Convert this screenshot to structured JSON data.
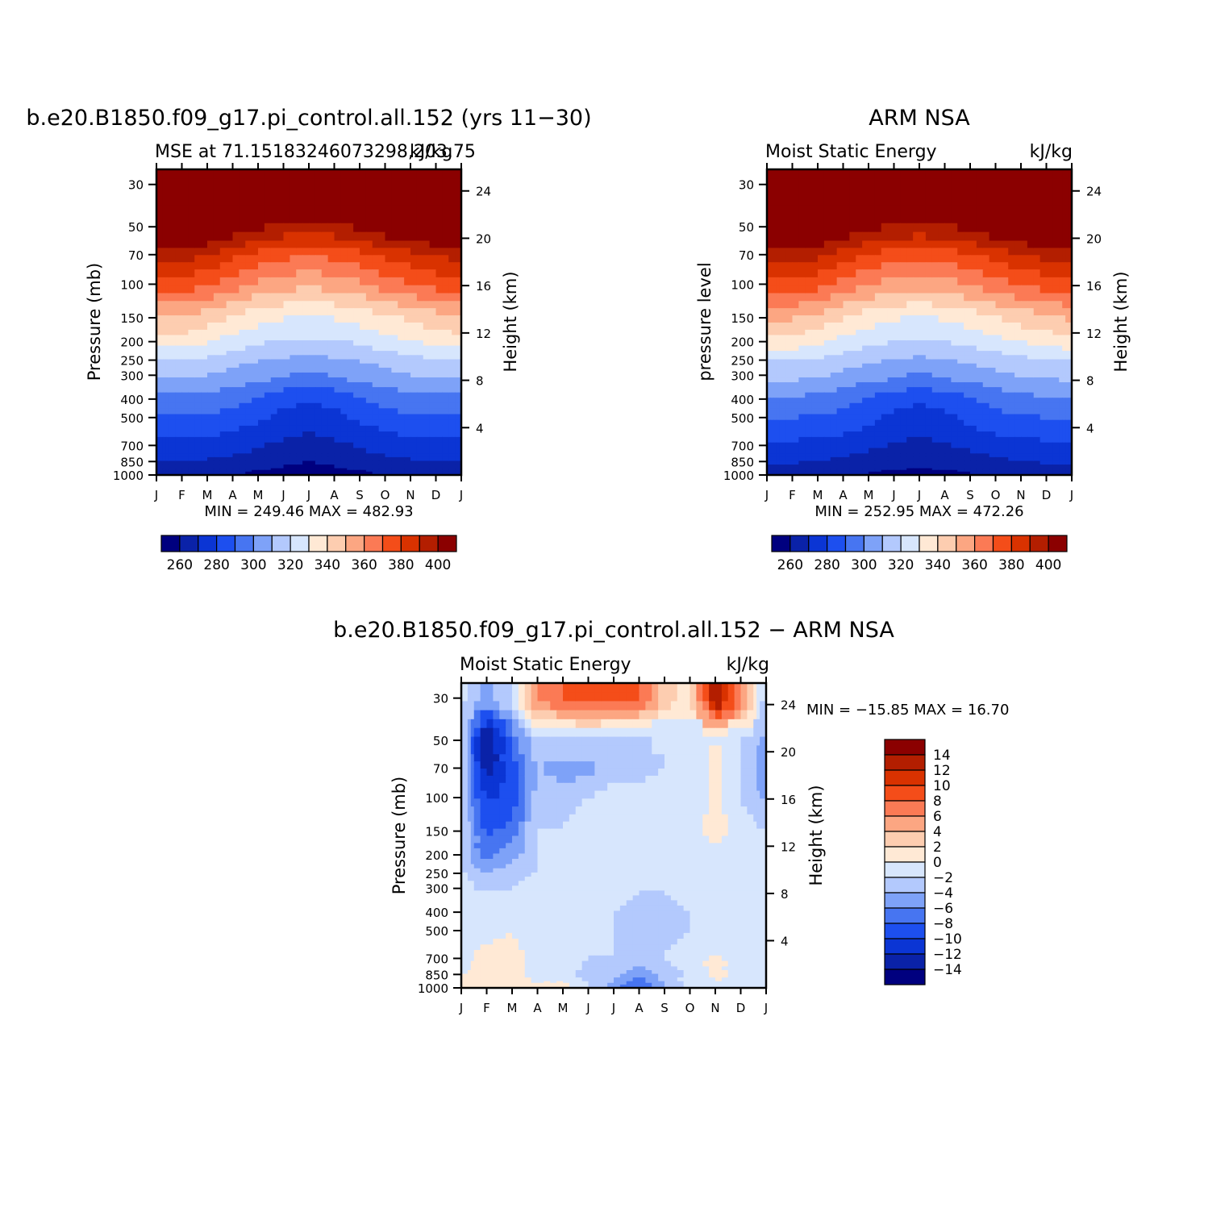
{
  "panels": [
    {
      "title": "b.e20.B1850.f09_g17.pi_control.all.152 (yrs 11−30)",
      "subtitle": "MSE at 71.15183246073298,203.75",
      "units": "kJ/kg",
      "ylabel": "Pressure (mb)",
      "ylabel_right": "Height (km)",
      "minmax": "MIN = 249.46 MAX = 482.93"
    },
    {
      "title": "ARM NSA",
      "subtitle": "Moist Static Energy",
      "units": "kJ/kg",
      "ylabel": "pressure level",
      "ylabel_right": "Height (km)",
      "minmax": "MIN = 252.95 MAX = 472.26"
    },
    {
      "title": "b.e20.B1850.f09_g17.pi_control.all.152 − ARM NSA",
      "subtitle": "Moist Static Energy",
      "units": "kJ/kg",
      "ylabel": "Pressure (mb)",
      "ylabel_right": "Height (km)",
      "minmax": "MIN = −15.85 MAX =   16.70"
    }
  ],
  "chart_data": [
    {
      "type": "heatmap",
      "title": "b.e20.B1850.f09_g17.pi_control.all.152 (yrs 11−30)",
      "subtitle": "MSE at 71.15183246073298,203.75",
      "units": "kJ/kg",
      "xlabel": "",
      "ylabel": "Pressure (mb)",
      "ylabel_right": "Height (km)",
      "x": [
        "J",
        "F",
        "M",
        "A",
        "M",
        "J",
        "J",
        "A",
        "S",
        "O",
        "N",
        "D",
        "J"
      ],
      "y": [
        30,
        50,
        70,
        100,
        150,
        200,
        250,
        300,
        400,
        500,
        700,
        850,
        1000
      ],
      "y_right_ticks": [
        4,
        8,
        12,
        16,
        20,
        24
      ],
      "y_scale": "log",
      "y_reversed": true,
      "values": [
        [
          425,
          425,
          425,
          425,
          425,
          425,
          425,
          425,
          425,
          425,
          425,
          425,
          425
        ],
        [
          418,
          420,
          417,
          410,
          404,
          400,
          398,
          400,
          404,
          410,
          415,
          418,
          418
        ],
        [
          393,
          394,
          390,
          383,
          377,
          373,
          371,
          373,
          377,
          382,
          387,
          391,
          393
        ],
        [
          375,
          375,
          371,
          364,
          358,
          354,
          352,
          354,
          358,
          364,
          369,
          373,
          375
        ],
        [
          350,
          350,
          346,
          339,
          334,
          331,
          329,
          331,
          334,
          339,
          343,
          347,
          350
        ],
        [
          335,
          335,
          332,
          326,
          322,
          320,
          319,
          320,
          322,
          326,
          330,
          333,
          335
        ],
        [
          320,
          320,
          318,
          314,
          311,
          309,
          307,
          309,
          311,
          314,
          317,
          319,
          320
        ],
        [
          311,
          311,
          309,
          306,
          303,
          300,
          296,
          300,
          303,
          306,
          309,
          310,
          311
        ],
        [
          298,
          298,
          297,
          294,
          290,
          284,
          282,
          284,
          290,
          294,
          297,
          298,
          298
        ],
        [
          288,
          288,
          287,
          285,
          281,
          276,
          273,
          276,
          281,
          285,
          287,
          288,
          288
        ],
        [
          278,
          278,
          277,
          275,
          272,
          269,
          267,
          269,
          272,
          275,
          277,
          278,
          278
        ],
        [
          270,
          270,
          269,
          267,
          264,
          261,
          260,
          261,
          264,
          267,
          269,
          270,
          270
        ],
        [
          263,
          263,
          263,
          261,
          259,
          258,
          258,
          258,
          259,
          261,
          263,
          263,
          263
        ]
      ],
      "colorbar": {
        "ticks": [
          260,
          280,
          300,
          320,
          340,
          360,
          380,
          400
        ],
        "levels": [
          250,
          260,
          270,
          280,
          290,
          300,
          310,
          320,
          330,
          340,
          350,
          360,
          370,
          380,
          390,
          400,
          410
        ],
        "colors": [
          "#00007f",
          "#0a22a8",
          "#0b35d4",
          "#1d4fef",
          "#4775f1",
          "#7ea2f8",
          "#b3c9fd",
          "#d7e6fd",
          "#ffe9d5",
          "#fdcdb0",
          "#fca682",
          "#fb7a55",
          "#f44d19",
          "#d93200",
          "#b31e00",
          "#8b0000"
        ]
      },
      "minmax": {
        "min": 249.46,
        "max": 482.93
      }
    },
    {
      "type": "heatmap",
      "title": "ARM NSA",
      "subtitle": "Moist Static Energy",
      "units": "kJ/kg",
      "xlabel": "",
      "ylabel": "pressure level",
      "ylabel_right": "Height (km)",
      "x": [
        "J",
        "F",
        "M",
        "A",
        "M",
        "J",
        "J",
        "A",
        "S",
        "O",
        "N",
        "D",
        "J"
      ],
      "y": [
        30,
        50,
        70,
        100,
        150,
        200,
        250,
        300,
        400,
        500,
        700,
        850,
        1000
      ],
      "y_right_ticks": [
        4,
        8,
        12,
        16,
        20,
        24
      ],
      "y_scale": "log",
      "y_reversed": true,
      "values": [
        [
          425,
          425,
          425,
          425,
          425,
          425,
          425,
          425,
          425,
          425,
          425,
          425,
          425
        ],
        [
          418,
          420,
          418,
          412,
          405,
          401,
          399,
          401,
          405,
          411,
          416,
          418,
          418
        ],
        [
          395,
          396,
          393,
          385,
          379,
          375,
          373,
          375,
          379,
          384,
          389,
          393,
          395
        ],
        [
          376,
          376,
          373,
          366,
          360,
          356,
          354,
          356,
          360,
          366,
          370,
          374,
          376
        ],
        [
          352,
          352,
          348,
          341,
          335,
          332,
          330,
          332,
          335,
          341,
          345,
          349,
          352
        ],
        [
          336,
          336,
          333,
          327,
          323,
          321,
          320,
          321,
          323,
          327,
          331,
          334,
          336
        ],
        [
          321,
          321,
          319,
          315,
          312,
          310,
          308,
          310,
          312,
          315,
          318,
          320,
          321
        ],
        [
          312,
          312,
          310,
          307,
          304,
          301,
          297,
          301,
          304,
          307,
          310,
          311,
          312
        ],
        [
          299,
          299,
          298,
          295,
          290,
          285,
          283,
          285,
          290,
          295,
          298,
          299,
          299
        ],
        [
          289,
          289,
          288,
          286,
          282,
          277,
          274,
          277,
          282,
          286,
          288,
          289,
          289
        ],
        [
          279,
          279,
          278,
          276,
          273,
          270,
          268,
          270,
          273,
          276,
          278,
          279,
          279
        ],
        [
          271,
          271,
          270,
          268,
          265,
          262,
          261,
          262,
          265,
          268,
          270,
          271,
          271
        ],
        [
          264,
          264,
          264,
          262,
          260,
          259,
          259,
          259,
          260,
          262,
          264,
          264,
          264
        ]
      ],
      "colorbar": {
        "ticks": [
          260,
          280,
          300,
          320,
          340,
          360,
          380,
          400
        ],
        "levels": [
          250,
          260,
          270,
          280,
          290,
          300,
          310,
          320,
          330,
          340,
          350,
          360,
          370,
          380,
          390,
          400,
          410
        ],
        "colors": [
          "#00007f",
          "#0a22a8",
          "#0b35d4",
          "#1d4fef",
          "#4775f1",
          "#7ea2f8",
          "#b3c9fd",
          "#d7e6fd",
          "#ffe9d5",
          "#fdcdb0",
          "#fca682",
          "#fb7a55",
          "#f44d19",
          "#d93200",
          "#b31e00",
          "#8b0000"
        ]
      },
      "minmax": {
        "min": 252.95,
        "max": 472.26
      }
    },
    {
      "type": "heatmap",
      "title": "b.e20.B1850.f09_g17.pi_control.all.152 − ARM NSA",
      "subtitle": "Moist Static Energy",
      "units": "kJ/kg",
      "xlabel": "",
      "ylabel": "Pressure (mb)",
      "ylabel_right": "Height (km)",
      "x": [
        "J",
        "F",
        "M",
        "A",
        "M",
        "J",
        "J",
        "A",
        "S",
        "O",
        "N",
        "D",
        "J"
      ],
      "y": [
        30,
        50,
        70,
        100,
        150,
        200,
        250,
        300,
        400,
        500,
        700,
        850,
        1000
      ],
      "y_right_ticks": [
        4,
        8,
        12,
        16,
        20,
        24
      ],
      "y_scale": "log",
      "y_reversed": true,
      "values": [
        [
          -2,
          -5,
          -2,
          6,
          8,
          9,
          8,
          8,
          3,
          1,
          15,
          6,
          -2
        ],
        [
          -4,
          -15,
          -7,
          -2,
          -2,
          -2,
          -2,
          -2,
          -2,
          -2,
          0,
          -2,
          -4
        ],
        [
          -4,
          -13,
          -9,
          -4,
          -5,
          -5,
          -3,
          -3,
          -2,
          -2,
          1,
          -2,
          -5
        ],
        [
          -4,
          -10,
          -10,
          -3,
          -3,
          -2,
          -1,
          -1,
          -1,
          -2,
          1,
          -2,
          -4
        ],
        [
          -3,
          -9,
          -7,
          -2,
          -2,
          -1,
          -1,
          -1,
          -1,
          -1,
          1,
          -1,
          -2
        ],
        [
          -3,
          -7,
          -5,
          -2,
          -2,
          -1,
          -1,
          -1,
          -1,
          -1,
          -1,
          -1,
          -2
        ],
        [
          -2,
          -4,
          -3,
          -2,
          -1,
          -2,
          -2,
          -2,
          -2,
          -2,
          -1,
          -1,
          -2
        ],
        [
          -2,
          -2,
          -2,
          -1,
          -1,
          -2,
          -1,
          -2,
          -2,
          -1,
          -1,
          -1,
          -1
        ],
        [
          -1,
          -1,
          -1,
          -2,
          -1,
          -2,
          -2,
          -3,
          -3,
          -2,
          -1,
          -1,
          -1
        ],
        [
          -1,
          -1,
          0,
          -2,
          -1,
          -2,
          -2,
          -3,
          -3,
          -2,
          -1,
          -1,
          -1
        ],
        [
          -1,
          1,
          1,
          -1,
          -1,
          -2,
          -2,
          -3,
          -2,
          -1,
          0,
          -1,
          -1
        ],
        [
          0,
          1,
          1,
          -1,
          -1,
          -3,
          -3,
          -6,
          -3,
          -2,
          1,
          -1,
          -1
        ],
        [
          0,
          1,
          1,
          0,
          1,
          -2,
          -5,
          -8,
          -4,
          -1,
          -1,
          -1,
          -1
        ]
      ],
      "colorbar": {
        "labels": [
          "14",
          "12",
          "10",
          "8",
          "6",
          "4",
          "2",
          "0",
          "−2",
          "−4",
          "−6",
          "−8",
          "−10",
          "−12",
          "−14"
        ],
        "levels": [
          -16,
          -14,
          -12,
          -10,
          -8,
          -6,
          -4,
          -2,
          0,
          2,
          4,
          6,
          8,
          10,
          12,
          14,
          16
        ],
        "colors": [
          "#00007f",
          "#0a22a8",
          "#0b35d4",
          "#1d4fef",
          "#4775f1",
          "#7ea2f8",
          "#b3c9fd",
          "#d7e6fd",
          "#ffe9d5",
          "#fdcdb0",
          "#fca682",
          "#fb7a55",
          "#f44d19",
          "#d93200",
          "#b31e00",
          "#8b0000"
        ]
      },
      "minmax": {
        "min": -15.85,
        "max": 16.7
      }
    }
  ]
}
